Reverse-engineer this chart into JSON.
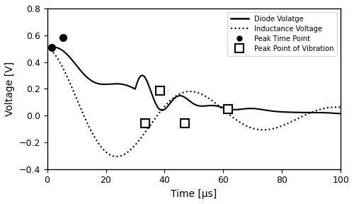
{
  "title": "",
  "xlabel": "Time [μs]",
  "ylabel": "Voltage [V]",
  "xlim": [
    0,
    100
  ],
  "ylim": [
    -0.4,
    0.8
  ],
  "xticks": [
    0,
    20,
    40,
    60,
    80,
    100
  ],
  "yticks": [
    -0.4,
    -0.2,
    0.0,
    0.2,
    0.4,
    0.6,
    0.8
  ],
  "peak_time_points": [
    [
      1.5,
      0.51
    ],
    [
      5.5,
      0.585
    ]
  ],
  "peak_vibration_points": [
    [
      33.5,
      -0.055
    ],
    [
      38.5,
      0.185
    ],
    [
      47.0,
      -0.055
    ],
    [
      61.5,
      0.048
    ]
  ],
  "legend_labels": [
    "Diode Volatge",
    "Inductance Voltage",
    "Peak Time Point",
    "Peak Point of Vibration"
  ],
  "line_color": "#000000",
  "background_color": "#ffffff",
  "V0": 0.51,
  "t_max_us": 100,
  "num_points": 5000
}
